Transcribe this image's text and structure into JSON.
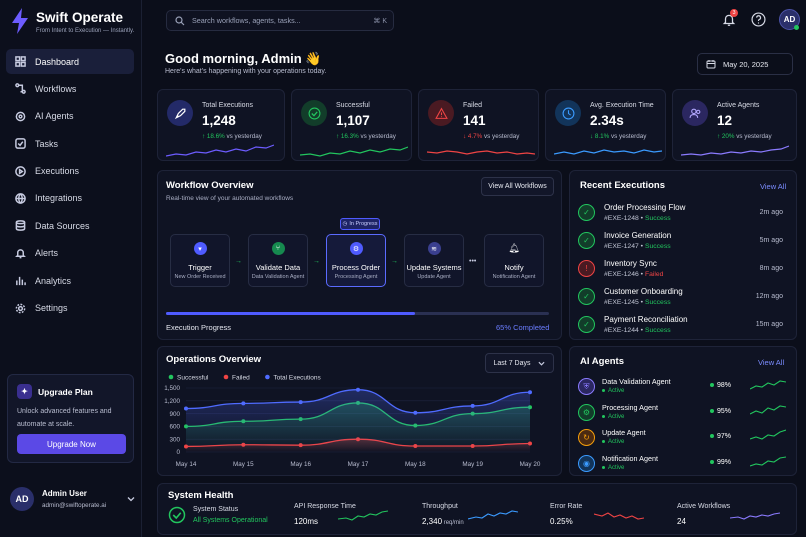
{
  "brand": {
    "name": "Swift Operate",
    "tagline": "From Intent to Execution — Instantly."
  },
  "nav": [
    "Dashboard",
    "Workflows",
    "AI Agents",
    "Tasks",
    "Executions",
    "Integrations",
    "Data Sources",
    "Alerts",
    "Analytics",
    "Settings"
  ],
  "upgrade": {
    "title": "Upgrade Plan",
    "text": "Unlock advanced features and automate at scale.",
    "button": "Upgrade Now"
  },
  "user": {
    "initials": "AD",
    "name": "Admin User",
    "email": "admin@swiftoperate.ai"
  },
  "search": {
    "placeholder": "Search workflows, agents, tasks...",
    "shortcut": "⌘ K"
  },
  "header": {
    "notifications": "3",
    "avatar": "AD"
  },
  "greeting": {
    "title": "Good morning, Admin 👋",
    "subtitle": "Here's what's happening with your operations today."
  },
  "date": "May 20, 2025",
  "stats": [
    {
      "label": "Total Executions",
      "value": "1,248",
      "delta": "↑ 18.6%",
      "suffix": " vs yesterday",
      "color": "#22c55e"
    },
    {
      "label": "Successful",
      "value": "1,107",
      "delta": "↑ 16.3%",
      "suffix": " vs yesterday",
      "color": "#22c55e"
    },
    {
      "label": "Failed",
      "value": "141",
      "delta": "↓ 4.7%",
      "suffix": " vs yesterday",
      "color": "#ef4444"
    },
    {
      "label": "Avg. Execution Time",
      "value": "2.34s",
      "delta": "↓ 8.1%",
      "suffix": " vs yesterday",
      "color": "#22c55e"
    },
    {
      "label": "Active Agents",
      "value": "12",
      "delta": "↑ 20%",
      "suffix": " vs yesterday",
      "color": "#22c55e"
    }
  ],
  "workflow": {
    "title": "Workflow Overview",
    "subtitle": "Real-time view of your automated workflows",
    "button": "View All Workflows",
    "badge": "In Progress",
    "nodes": [
      {
        "name": "Trigger",
        "sub": "New Order Received"
      },
      {
        "name": "Validate Data",
        "sub": "Data Validation Agent"
      },
      {
        "name": "Process Order",
        "sub": "Processing Agent"
      },
      {
        "name": "Update Systems",
        "sub": "Update Agent"
      },
      {
        "name": "Notify",
        "sub": "Notification Agent"
      }
    ],
    "progress_label": "Execution Progress",
    "progress_value": "65% Completed"
  },
  "recent": {
    "title": "Recent Executions",
    "link": "View All",
    "items": [
      {
        "name": "Order Processing Flow",
        "id": "#EXE-1248",
        "status": "Success",
        "time": "2m ago"
      },
      {
        "name": "Invoice Generation",
        "id": "#EXE-1247",
        "status": "Success",
        "time": "5m ago"
      },
      {
        "name": "Inventory Sync",
        "id": "#EXE-1246",
        "status": "Failed",
        "time": "8m ago"
      },
      {
        "name": "Customer Onboarding",
        "id": "#EXE-1245",
        "status": "Success",
        "time": "12m ago"
      },
      {
        "name": "Payment Reconciliation",
        "id": "#EXE-1244",
        "status": "Success",
        "time": "15m ago"
      }
    ]
  },
  "operations": {
    "title": "Operations Overview",
    "range": "Last 7 Days"
  },
  "chart_data": {
    "type": "line",
    "categories": [
      "May 14",
      "May 15",
      "May 16",
      "May 17",
      "May 18",
      "May 19",
      "May 20"
    ],
    "yticks": [
      "1,500",
      "1,200",
      "900",
      "600",
      "300",
      "0"
    ],
    "ylim": [
      0,
      1500
    ],
    "legend": "top-left",
    "series": [
      {
        "name": "Successful",
        "color": "#22c55e",
        "values": [
          600,
          720,
          770,
          1150,
          620,
          900,
          1050
        ]
      },
      {
        "name": "Failed",
        "color": "#ef4444",
        "values": [
          130,
          170,
          160,
          300,
          140,
          140,
          200
        ]
      },
      {
        "name": "Total Executions",
        "color": "#4f6bff",
        "values": [
          1020,
          1140,
          1170,
          1460,
          920,
          1080,
          1400
        ]
      }
    ]
  },
  "agents": {
    "title": "AI Agents",
    "link": "View All",
    "items": [
      {
        "name": "Data Validation Agent",
        "status": "Active",
        "pct": "98%"
      },
      {
        "name": "Processing Agent",
        "status": "Active",
        "pct": "95%"
      },
      {
        "name": "Update Agent",
        "status": "Active",
        "pct": "97%"
      },
      {
        "name": "Notification Agent",
        "status": "Active",
        "pct": "99%"
      }
    ]
  },
  "health": {
    "title": "System Health",
    "status_label": "System Status",
    "status_value": "All Systems Operational",
    "items": [
      {
        "label": "API Response Time",
        "value": "120ms",
        "unit": ""
      },
      {
        "label": "Throughput",
        "value": "2,340",
        "unit": " req/min"
      },
      {
        "label": "Error Rate",
        "value": "0.25%",
        "unit": ""
      },
      {
        "label": "Active Workflows",
        "value": "24",
        "unit": ""
      }
    ]
  }
}
